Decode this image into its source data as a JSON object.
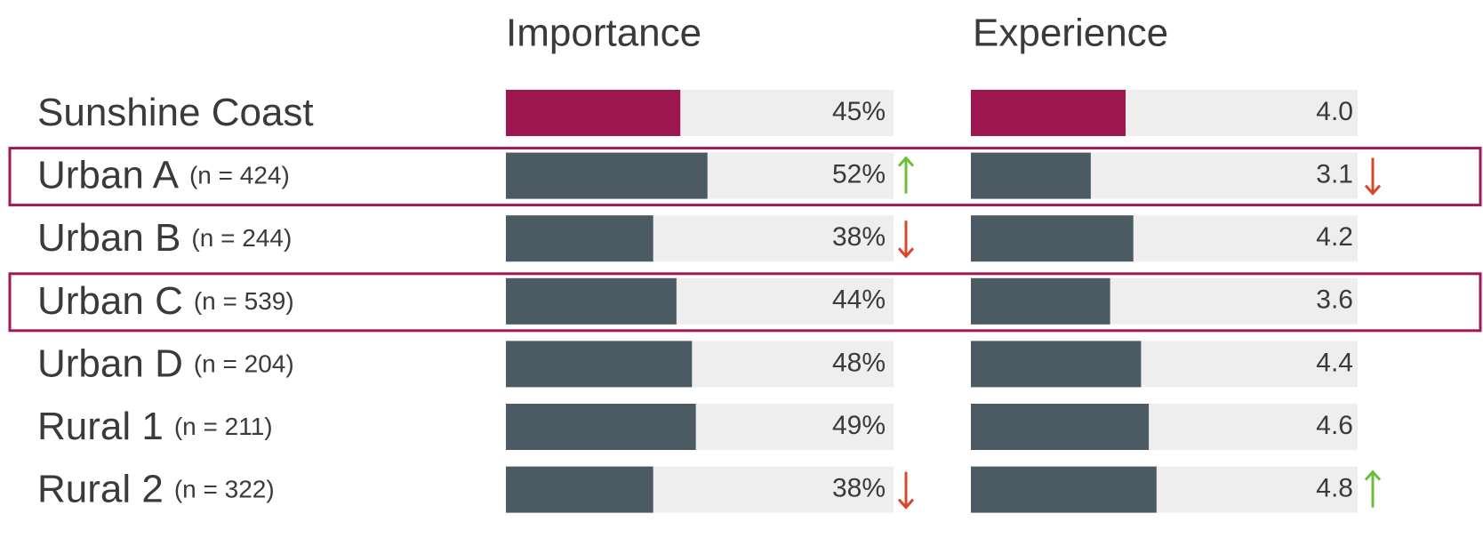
{
  "headers": {
    "importance": "Importance",
    "experience": "Experience"
  },
  "importance_xlim": [
    0,
    100
  ],
  "experience_xlim": [
    0,
    10
  ],
  "rows": [
    {
      "name": "Sunshine Coast",
      "importance": 45,
      "importance_label": "45%",
      "experience": 4.0,
      "experience_label": "4.0",
      "color": "#9e1650"
    },
    {
      "name": "Urban A",
      "n_label": "(n = 424)",
      "importance": 52,
      "importance_label": "52%",
      "importance_trend": "up",
      "experience": 3.1,
      "experience_label": "3.1",
      "experience_trend": "down",
      "highlighted": true,
      "color": "#4b5a63"
    },
    {
      "name": "Urban B",
      "n_label": "(n = 244)",
      "importance": 38,
      "importance_label": "38%",
      "importance_trend": "down",
      "experience": 4.2,
      "experience_label": "4.2",
      "color": "#4b5a63"
    },
    {
      "name": "Urban C",
      "n_label": "(n = 539)",
      "importance": 44,
      "importance_label": "44%",
      "experience": 3.6,
      "experience_label": "3.6",
      "highlighted": true,
      "color": "#4b5a63"
    },
    {
      "name": "Urban D",
      "n_label": "(n = 204)",
      "importance": 48,
      "importance_label": "48%",
      "experience": 4.4,
      "experience_label": "4.4",
      "color": "#4b5a63"
    },
    {
      "name": "Rural 1",
      "n_label": "(n = 211)",
      "importance": 49,
      "importance_label": "49%",
      "experience": 4.6,
      "experience_label": "4.6",
      "color": "#4b5a63"
    },
    {
      "name": "Rural 2",
      "n_label": "(n = 322)",
      "importance": 38,
      "importance_label": "38%",
      "importance_trend": "down",
      "experience": 4.8,
      "experience_label": "4.8",
      "experience_trend": "up",
      "color": "#4b5a63"
    }
  ]
}
